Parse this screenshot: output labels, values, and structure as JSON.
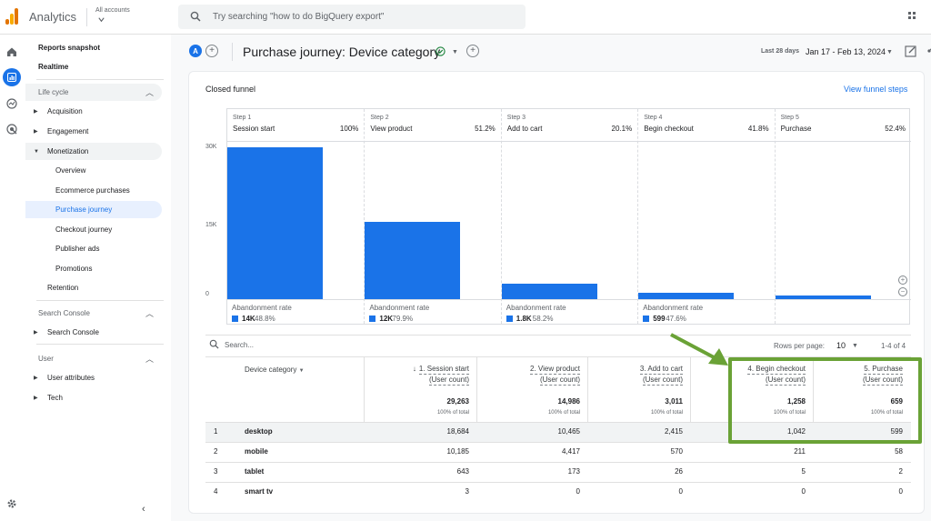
{
  "app": {
    "brand": "Analytics",
    "account_label": "All accounts",
    "search_placeholder": "Try searching \"how to do BigQuery export\""
  },
  "nav": {
    "reports_snapshot": "Reports snapshot",
    "realtime": "Realtime",
    "lifecycle": "Life cycle",
    "acquisition": "Acquisition",
    "engagement": "Engagement",
    "monetization": "Monetization",
    "overview": "Overview",
    "ecommerce": "Ecommerce purchases",
    "purchase_journey": "Purchase journey",
    "checkout_journey": "Checkout journey",
    "publisher_ads": "Publisher ads",
    "promotions": "Promotions",
    "retention": "Retention",
    "search_console_section": "Search Console",
    "search_console": "Search Console",
    "user_section": "User",
    "user_attributes": "User attributes",
    "tech": "Tech"
  },
  "header": {
    "avatar_letter": "A",
    "title": "Purchase journey: Device category",
    "date_label": "Last 28 days",
    "date_range": "Jan 17 - Feb 13, 2024"
  },
  "card": {
    "title": "Closed funnel",
    "view_steps": "View funnel steps"
  },
  "funnel": {
    "y_ticks": [
      "30K",
      "15K",
      "0"
    ],
    "y_max": 30000,
    "steps": [
      {
        "num": "Step 1",
        "name": "Session start",
        "pct": "100%",
        "value": 29263,
        "aband_label": "Abandonment rate",
        "aband_count": "14K",
        "aband_rate": "48.8%"
      },
      {
        "num": "Step 2",
        "name": "View product",
        "pct": "51.2%",
        "value": 14986,
        "aband_label": "Abandonment rate",
        "aband_count": "12K",
        "aband_rate": "79.9%"
      },
      {
        "num": "Step 3",
        "name": "Add to cart",
        "pct": "20.1%",
        "value": 3011,
        "aband_label": "Abandonment rate",
        "aband_count": "1.8K",
        "aband_rate": "58.2%"
      },
      {
        "num": "Step 4",
        "name": "Begin checkout",
        "pct": "41.8%",
        "value": 1258,
        "aband_label": "Abandonment rate",
        "aband_count": "599",
        "aband_rate": "47.6%"
      },
      {
        "num": "Step 5",
        "name": "Purchase",
        "pct": "52.4%",
        "value": 659,
        "aband_label": "",
        "aband_count": "",
        "aband_rate": ""
      }
    ]
  },
  "table": {
    "search_placeholder": "Search...",
    "rows_per_page_label": "Rows per page:",
    "rows_per_page": "10",
    "pager": "1-4 of 4",
    "dim_header": "Device category",
    "columns": [
      {
        "line1": "1. Session start",
        "line2": "(User count)",
        "total": "29,263",
        "pct": "100% of total"
      },
      {
        "line1": "2. View product",
        "line2": "(User count)",
        "total": "14,986",
        "pct": "100% of total"
      },
      {
        "line1": "3. Add to cart",
        "line2": "(User count)",
        "total": "3,011",
        "pct": "100% of total"
      },
      {
        "line1": "4. Begin checkout",
        "line2": "(User count)",
        "total": "1,258",
        "pct": "100% of total"
      },
      {
        "line1": "5. Purchase",
        "line2": "(User count)",
        "total": "659",
        "pct": "100% of total"
      }
    ],
    "rows": [
      {
        "idx": "1",
        "device": "desktop",
        "vals": [
          "18,684",
          "10,465",
          "2,415",
          "1,042",
          "599"
        ]
      },
      {
        "idx": "2",
        "device": "mobile",
        "vals": [
          "10,185",
          "4,417",
          "570",
          "211",
          "58"
        ]
      },
      {
        "idx": "3",
        "device": "tablet",
        "vals": [
          "643",
          "173",
          "26",
          "5",
          "2"
        ]
      },
      {
        "idx": "4",
        "device": "smart tv",
        "vals": [
          "3",
          "0",
          "0",
          "0",
          "0"
        ]
      }
    ]
  },
  "colors": {
    "accent": "#1a73e8",
    "annotation": "#6aa236"
  }
}
